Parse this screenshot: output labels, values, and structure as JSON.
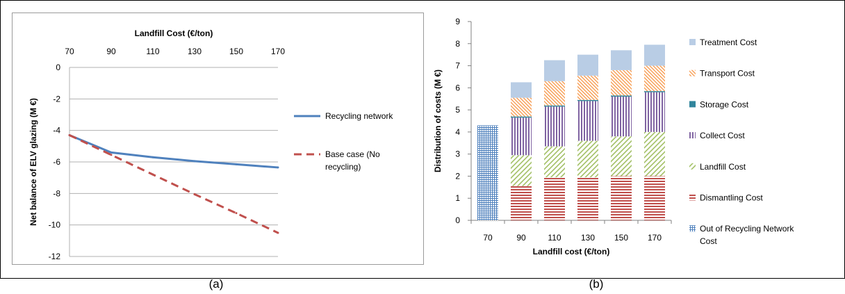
{
  "charts": [
    {
      "caption": "(a)",
      "chart_data": {
        "type": "line",
        "title": "",
        "xlabel": "Landfill Cost (€/ton)",
        "ylabel": "Net balance of ELV glazing  (M €)",
        "x": [
          70,
          90,
          110,
          130,
          150,
          170
        ],
        "x_tick_labels": [
          "70",
          "90",
          "110",
          "130",
          "150",
          "170"
        ],
        "xlim": [
          70,
          170
        ],
        "xaxis_position": "top",
        "ylim": [
          -12,
          0
        ],
        "y_ticks": [
          0,
          -2,
          -4,
          -6,
          -8,
          -10,
          -12
        ],
        "y_tick_labels": [
          "0",
          "-2",
          "-4",
          "-6",
          "-8",
          "-10",
          "-12"
        ],
        "grid": true,
        "legend_position": "right",
        "series": [
          {
            "name": "Recycling network",
            "legend_lines": [
              "Recycling network"
            ],
            "style": "solid",
            "color": "#4F81BD",
            "values": [
              -4.3,
              -5.4,
              -5.7,
              -5.95,
              -6.15,
              -6.35
            ]
          },
          {
            "name": "Base case (No recycling)",
            "legend_lines": [
              "Base case (No",
              "recycling)"
            ],
            "style": "dashed",
            "color": "#C0504D",
            "values": [
              -4.3,
              -5.55,
              -6.8,
              -8.05,
              -9.25,
              -10.5
            ]
          }
        ]
      }
    },
    {
      "caption": "(b)",
      "chart_data": {
        "type": "bar",
        "stacked": true,
        "title": "",
        "xlabel": "Landfill cost (€/ton)",
        "ylabel": "Distribution of costs (M €)",
        "categories": [
          "70",
          "90",
          "110",
          "130",
          "150",
          "170"
        ],
        "ylim": [
          0,
          9
        ],
        "y_ticks": [
          0,
          1,
          2,
          3,
          4,
          5,
          6,
          7,
          8,
          9
        ],
        "y_tick_labels": [
          "0",
          "1",
          "2",
          "3",
          "4",
          "5",
          "6",
          "7",
          "8",
          "9"
        ],
        "grid": false,
        "legend_position": "right",
        "series": [
          {
            "name": "Out of Recycling Network Cost",
            "legend_lines": [
              "Out of Recycling Network",
              "Cost"
            ],
            "pattern": "grid",
            "color": "#4F81BD",
            "values": [
              4.3,
              0,
              0,
              0,
              0,
              0
            ]
          },
          {
            "name": "Dismantling Cost",
            "legend_lines": [
              "Dismantling Cost"
            ],
            "pattern": "horizontal",
            "color": "#C0504D",
            "values": [
              0,
              1.55,
              1.95,
              1.95,
              2.0,
              2.0
            ]
          },
          {
            "name": "Landfill Cost",
            "legend_lines": [
              "Landfill Cost"
            ],
            "pattern": "diagonal",
            "color": "#9BBB59",
            "values": [
              0,
              1.4,
              1.4,
              1.65,
              1.8,
              2.0
            ]
          },
          {
            "name": "Collect Cost",
            "legend_lines": [
              "Collect Cost"
            ],
            "pattern": "vertical",
            "color": "#8064A2",
            "values": [
              0,
              1.7,
              1.8,
              1.8,
              1.8,
              1.8
            ]
          },
          {
            "name": "Storage Cost",
            "legend_lines": [
              "Storage Cost"
            ],
            "pattern": "solid",
            "color": "#31859C",
            "values": [
              0,
              0.05,
              0.05,
              0.05,
              0.05,
              0.05
            ]
          },
          {
            "name": "Transport Cost",
            "legend_lines": [
              "Transport Cost"
            ],
            "pattern": "diagonal-dense",
            "color": "#F79646",
            "values": [
              0,
              0.85,
              1.1,
              1.1,
              1.15,
              1.15
            ]
          },
          {
            "name": "Treatment Cost",
            "legend_lines": [
              "Treatment Cost"
            ],
            "pattern": "solid",
            "color": "#B9CDE5",
            "values": [
              0,
              0.7,
              0.95,
              0.95,
              0.9,
              0.95
            ]
          }
        ]
      }
    }
  ]
}
